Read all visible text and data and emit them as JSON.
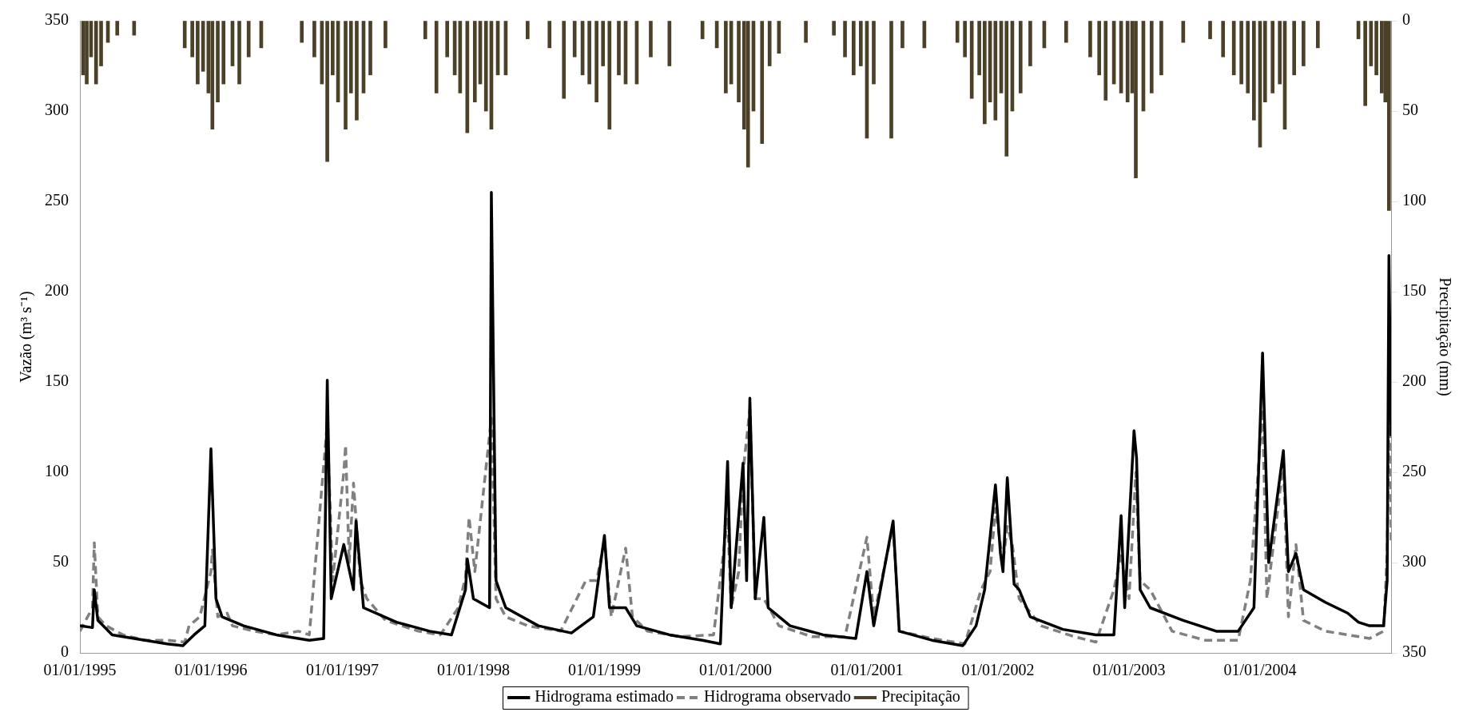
{
  "chart_data": {
    "type": "line",
    "ylabel": "Vazão (m³ s⁻¹)",
    "y2label": "Precipitação (mm)",
    "xlim": [
      "1995-01-01",
      "2004-12-31"
    ],
    "xticks": [
      {
        "value": "1995-01-01",
        "label": "01/01/1995"
      },
      {
        "value": "1996-01-01",
        "label": "01/01/1996"
      },
      {
        "value": "1997-01-01",
        "label": "01/01/1997"
      },
      {
        "value": "1998-01-01",
        "label": "01/01/1998"
      },
      {
        "value": "1999-01-01",
        "label": "01/01/1999"
      },
      {
        "value": "2000-01-01",
        "label": "01/01/2000"
      },
      {
        "value": "2001-01-01",
        "label": "01/01/2001"
      },
      {
        "value": "2002-01-01",
        "label": "01/01/2002"
      },
      {
        "value": "2003-01-01",
        "label": "01/01/2003"
      },
      {
        "value": "2004-01-01",
        "label": "01/01/2004"
      }
    ],
    "ylim": [
      0,
      350
    ],
    "yticks": [
      0,
      50,
      100,
      150,
      200,
      250,
      300,
      350
    ],
    "y2lim": [
      350,
      0
    ],
    "y2ticks": [
      0,
      50,
      100,
      150,
      200,
      250,
      300,
      350
    ],
    "grid": false,
    "legend": "bottom",
    "marker": "none",
    "series": [
      {
        "name": "Hidrograma estimado",
        "color": "#000000",
        "line_style": "solid",
        "x": [
          "1995-01-01",
          "1995-02-05",
          "1995-02-10",
          "1995-02-20",
          "1995-04-01",
          "1995-06-01",
          "1995-09-01",
          "1995-10-15",
          "1995-11-15",
          "1995-12-15",
          "1996-01-01",
          "1996-01-15",
          "1996-02-01",
          "1996-04-01",
          "1996-07-01",
          "1996-10-01",
          "1996-11-10",
          "1996-11-20",
          "1996-12-01",
          "1997-01-05",
          "1997-02-01",
          "1997-02-08",
          "1997-03-01",
          "1997-06-01",
          "1997-09-01",
          "1997-11-01",
          "1997-12-10",
          "1997-12-15",
          "1998-01-01",
          "1998-02-15",
          "1998-02-20",
          "1998-03-05",
          "1998-04-01",
          "1998-07-01",
          "1998-10-01",
          "1998-12-01",
          "1999-01-01",
          "1999-01-15",
          "1999-03-01",
          "1999-04-01",
          "1999-07-01",
          "1999-10-01",
          "1999-11-20",
          "1999-12-10",
          "1999-12-20",
          "2000-01-22",
          "2000-02-01",
          "2000-02-10",
          "2000-02-25",
          "2000-03-20",
          "2000-04-01",
          "2000-06-01",
          "2000-09-01",
          "2000-12-01",
          "2001-01-01",
          "2001-01-20",
          "2001-03-15",
          "2001-04-01",
          "2001-07-01",
          "2001-09-25",
          "2001-11-01",
          "2001-11-25",
          "2001-12-25",
          "2002-01-08",
          "2002-01-15",
          "2002-01-27",
          "2002-02-15",
          "2002-03-01",
          "2002-04-01",
          "2002-07-01",
          "2002-10-01",
          "2002-11-20",
          "2002-12-10",
          "2002-12-20",
          "2003-01-15",
          "2003-01-22",
          "2003-02-01",
          "2003-03-01",
          "2003-06-01",
          "2003-09-01",
          "2003-11-01",
          "2003-12-15",
          "2004-01-08",
          "2004-01-25",
          "2004-03-06",
          "2004-03-20",
          "2004-04-10",
          "2004-05-01",
          "2004-07-01",
          "2004-09-01",
          "2004-10-01",
          "2004-11-01",
          "2004-12-10",
          "2004-12-20",
          "2004-12-25",
          "2004-12-31"
        ],
        "values": [
          15,
          14,
          35,
          18,
          10,
          8,
          5,
          4,
          10,
          15,
          113,
          30,
          20,
          15,
          10,
          7,
          8,
          151,
          30,
          60,
          35,
          73,
          25,
          17,
          12,
          10,
          35,
          52,
          30,
          25,
          255,
          40,
          25,
          15,
          11,
          20,
          65,
          25,
          25,
          15,
          10,
          7,
          5,
          106,
          25,
          105,
          40,
          141,
          30,
          75,
          25,
          15,
          10,
          8,
          45,
          15,
          73,
          12,
          7,
          4,
          15,
          35,
          93,
          55,
          45,
          97,
          38,
          35,
          20,
          13,
          10,
          10,
          76,
          25,
          123,
          108,
          35,
          25,
          18,
          12,
          12,
          25,
          166,
          50,
          112,
          45,
          55,
          35,
          28,
          22,
          17,
          15,
          15,
          40,
          220,
          120
        ]
      },
      {
        "name": "Hidrograma observado",
        "color": "#808080",
        "line_style": "dashed",
        "x": [
          "1995-01-01",
          "1995-02-05",
          "1995-02-10",
          "1995-02-20",
          "1995-03-15",
          "1995-05-01",
          "1995-07-01",
          "1995-09-01",
          "1995-10-20",
          "1995-11-01",
          "1995-12-01",
          "1996-01-01",
          "1996-01-05",
          "1996-01-20",
          "1996-02-15",
          "1996-03-01",
          "1996-05-01",
          "1996-07-01",
          "1996-09-01",
          "1996-10-01",
          "1996-11-20",
          "1996-12-05",
          "1997-01-05",
          "1997-01-10",
          "1997-01-20",
          "1997-02-01",
          "1997-02-20",
          "1997-03-10",
          "1997-05-01",
          "1997-08-01",
          "1997-10-01",
          "1997-11-20",
          "1997-12-10",
          "1997-12-20",
          "1998-01-05",
          "1998-02-20",
          "1998-03-05",
          "1998-04-01",
          "1998-06-01",
          "1998-09-01",
          "1998-11-10",
          "1998-12-10",
          "1999-01-01",
          "1999-01-20",
          "1999-03-01",
          "1999-03-20",
          "1999-05-01",
          "1999-08-01",
          "1999-11-01",
          "1999-12-10",
          "1999-12-20",
          "2000-01-10",
          "2000-01-22",
          "2000-02-10",
          "2000-02-25",
          "2000-03-20",
          "2000-05-01",
          "2000-08-01",
          "2000-11-01",
          "2001-01-01",
          "2001-01-20",
          "2001-03-15",
          "2001-04-01",
          "2001-07-01",
          "2001-10-01",
          "2001-11-15",
          "2001-12-10",
          "2001-12-25",
          "2002-01-15",
          "2002-01-27",
          "2002-02-10",
          "2002-03-01",
          "2002-05-01",
          "2002-08-01",
          "2002-10-01",
          "2002-11-20",
          "2002-12-10",
          "2003-01-01",
          "2003-01-20",
          "2003-02-01",
          "2003-03-01",
          "2003-05-01",
          "2003-08-01",
          "2003-11-01",
          "2003-12-05",
          "2004-01-08",
          "2004-01-20",
          "2004-03-06",
          "2004-03-20",
          "2004-04-10",
          "2004-05-01",
          "2004-07-01",
          "2004-09-01",
          "2004-11-01",
          "2004-12-10",
          "2004-12-20",
          "2004-12-28",
          "2004-12-31"
        ],
        "values": [
          12,
          25,
          61,
          20,
          15,
          10,
          7,
          7,
          6,
          15,
          20,
          45,
          57,
          20,
          22,
          15,
          12,
          10,
          12,
          10,
          127,
          40,
          100,
          115,
          50,
          94,
          40,
          30,
          18,
          12,
          10,
          25,
          42,
          75,
          45,
          130,
          30,
          20,
          15,
          12,
          40,
          40,
          62,
          20,
          58,
          20,
          12,
          9,
          10,
          75,
          25,
          45,
          100,
          135,
          30,
          30,
          15,
          9,
          9,
          64,
          20,
          70,
          12,
          8,
          5,
          35,
          45,
          80,
          50,
          70,
          60,
          30,
          15,
          9,
          6,
          35,
          55,
          30,
          100,
          40,
          35,
          12,
          7,
          7,
          40,
          135,
          30,
          105,
          20,
          60,
          18,
          12,
          10,
          8,
          12,
          55,
          175,
          60
        ]
      },
      {
        "name": "Precipitação",
        "type": "bar",
        "axis": "y2",
        "color": "#4a4128",
        "x": [
          "1995-01-10",
          "1995-01-20",
          "1995-02-01",
          "1995-02-15",
          "1995-03-01",
          "1995-03-20",
          "1995-04-15",
          "1995-06-01",
          "1995-10-20",
          "1995-11-10",
          "1995-11-25",
          "1995-12-10",
          "1995-12-25",
          "1996-01-05",
          "1996-01-20",
          "1996-02-05",
          "1996-03-01",
          "1996-03-20",
          "1996-04-15",
          "1996-05-20",
          "1996-09-10",
          "1996-10-15",
          "1996-11-05",
          "1996-11-20",
          "1996-12-05",
          "1996-12-20",
          "1997-01-10",
          "1997-01-25",
          "1997-02-10",
          "1997-03-01",
          "1997-03-20",
          "1997-05-01",
          "1997-08-20",
          "1997-09-20",
          "1997-10-20",
          "1997-11-10",
          "1997-11-25",
          "1997-12-15",
          "1998-01-05",
          "1998-01-20",
          "1998-02-05",
          "1998-02-20",
          "1998-03-10",
          "1998-04-01",
          "1998-06-01",
          "1998-08-01",
          "1998-09-10",
          "1998-10-10",
          "1998-11-01",
          "1998-11-20",
          "1998-12-10",
          "1998-12-28",
          "1999-01-15",
          "1999-02-10",
          "1999-03-01",
          "1999-04-01",
          "1999-05-10",
          "1999-07-01",
          "1999-10-01",
          "1999-11-10",
          "1999-12-05",
          "1999-12-20",
          "2000-01-10",
          "2000-01-25",
          "2000-02-05",
          "2000-02-20",
          "2000-03-15",
          "2000-04-05",
          "2000-05-01",
          "2000-07-15",
          "2000-10-01",
          "2000-11-01",
          "2000-11-25",
          "2000-12-15",
          "2001-01-01",
          "2001-01-20",
          "2001-03-10",
          "2001-04-10",
          "2001-06-10",
          "2001-09-10",
          "2001-10-01",
          "2001-10-20",
          "2001-11-10",
          "2001-11-25",
          "2001-12-10",
          "2001-12-25",
          "2002-01-10",
          "2002-01-25",
          "2002-02-10",
          "2002-03-05",
          "2002-04-01",
          "2002-05-10",
          "2002-07-10",
          "2002-09-15",
          "2002-10-10",
          "2002-10-28",
          "2002-11-20",
          "2002-12-10",
          "2002-12-28",
          "2003-01-10",
          "2003-01-20",
          "2003-02-10",
          "2003-03-05",
          "2003-04-01",
          "2003-06-01",
          "2003-08-15",
          "2003-09-20",
          "2003-10-20",
          "2003-11-10",
          "2003-11-28",
          "2003-12-15",
          "2004-01-01",
          "2004-01-15",
          "2004-02-05",
          "2004-02-25",
          "2004-03-10",
          "2004-04-05",
          "2004-05-01",
          "2004-06-10",
          "2004-10-01",
          "2004-10-20",
          "2004-11-05",
          "2004-11-20",
          "2004-12-05",
          "2004-12-15",
          "2004-12-25"
        ],
        "values": [
          30,
          35,
          20,
          35,
          25,
          12,
          8,
          8,
          15,
          20,
          35,
          28,
          40,
          60,
          45,
          35,
          25,
          35,
          20,
          15,
          12,
          20,
          35,
          78,
          30,
          45,
          60,
          40,
          55,
          40,
          30,
          15,
          10,
          40,
          20,
          30,
          40,
          62,
          45,
          35,
          50,
          60,
          30,
          30,
          10,
          15,
          43,
          20,
          30,
          35,
          45,
          25,
          60,
          30,
          35,
          35,
          20,
          25,
          10,
          15,
          40,
          35,
          45,
          60,
          81,
          50,
          68,
          25,
          18,
          12,
          8,
          20,
          30,
          25,
          65,
          35,
          65,
          15,
          15,
          12,
          20,
          43,
          30,
          57,
          45,
          55,
          40,
          75,
          50,
          40,
          25,
          15,
          12,
          20,
          30,
          44,
          35,
          40,
          45,
          40,
          87,
          50,
          40,
          30,
          12,
          10,
          20,
          30,
          35,
          40,
          55,
          70,
          45,
          40,
          35,
          60,
          30,
          25,
          15,
          10,
          47,
          25,
          30,
          40,
          45,
          105
        ]
      }
    ]
  }
}
